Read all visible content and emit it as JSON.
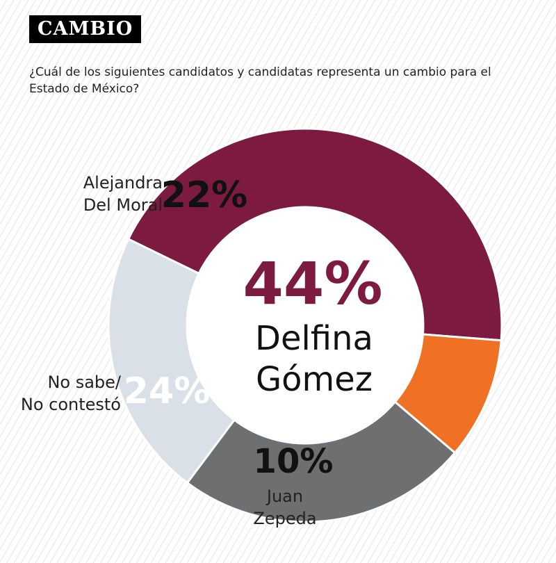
{
  "header": {
    "badge": "CAMBIO"
  },
  "question": "¿Cuál de los siguientes candidatos y candidatas representa un cambio para el Estado de México?",
  "chart_data": {
    "type": "pie",
    "title": "¿Cuál de los siguientes candidatos y candidatas representa un cambio para el Estado de México?",
    "unit": "%",
    "slices": [
      {
        "name": "Delfina Gómez",
        "value": 44,
        "label": "44%",
        "color": "#7d1a40",
        "name_lines": [
          "Delfina",
          "Gómez"
        ]
      },
      {
        "name": "Juan Zepeda",
        "value": 10,
        "label": "10%",
        "color": "#f07124",
        "name_lines": [
          "Juan",
          "Zepeda"
        ]
      },
      {
        "name": "No sabe/ No contestó",
        "value": 24,
        "label": "24%",
        "color": "#6e6f71",
        "name_lines": [
          "No sabe/",
          "No contestó"
        ]
      },
      {
        "name": "Alejandra Del Moral",
        "value": 22,
        "label": "22%",
        "color": "#d9e0e7",
        "name_lines": [
          "Alejandra",
          "Del Moral"
        ]
      }
    ]
  }
}
